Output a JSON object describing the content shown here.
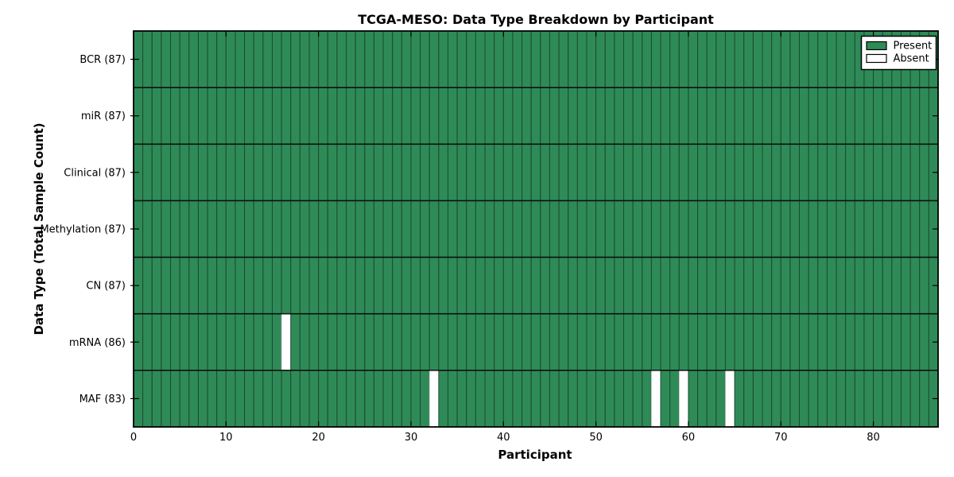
{
  "chart": {
    "title": "TCGA-MESO: Data Type Breakdown by Participant",
    "xlabel": "Participant",
    "ylabel": "Data Type (Total Sample Count)"
  },
  "legend": {
    "items": [
      {
        "label": "Present",
        "color": "#2e8b57"
      },
      {
        "label": "Absent",
        "color": "#ffffff"
      }
    ]
  },
  "chart_data": {
    "type": "heatmap",
    "title": "TCGA-MESO: Data Type Breakdown by Participant",
    "xlabel": "Participant",
    "ylabel": "Data Type (Total Sample Count)",
    "n_participants": 87,
    "x_range": [
      0,
      87
    ],
    "x_ticks": [
      0,
      10,
      20,
      30,
      40,
      50,
      60,
      70,
      80
    ],
    "grid": "cell-borders",
    "legend_position": "upper right",
    "legend_entries": [
      "Present",
      "Absent"
    ],
    "rows": [
      {
        "label": "BCR (87)",
        "data_type": "BCR",
        "present_count": 87,
        "absent_participants": []
      },
      {
        "label": "miR (87)",
        "data_type": "miR",
        "present_count": 87,
        "absent_participants": []
      },
      {
        "label": "Clinical (87)",
        "data_type": "Clinical",
        "present_count": 87,
        "absent_participants": []
      },
      {
        "label": "Methylation (87)",
        "data_type": "Methylation",
        "present_count": 87,
        "absent_participants": []
      },
      {
        "label": "CN (87)",
        "data_type": "CN",
        "present_count": 87,
        "absent_participants": []
      },
      {
        "label": "mRNA (86)",
        "data_type": "mRNA",
        "present_count": 86,
        "absent_participants": [
          16
        ]
      },
      {
        "label": "MAF (83)",
        "data_type": "MAF",
        "present_count": 83,
        "absent_participants": [
          32,
          56,
          59,
          64
        ]
      }
    ],
    "colors": {
      "present": "#2e8b57",
      "absent": "#ffffff",
      "cell_edge": "#1d4a31",
      "absent_edge": "#bbbbbb",
      "row_separator": "#0a0a0a",
      "axis": "#000000"
    }
  }
}
